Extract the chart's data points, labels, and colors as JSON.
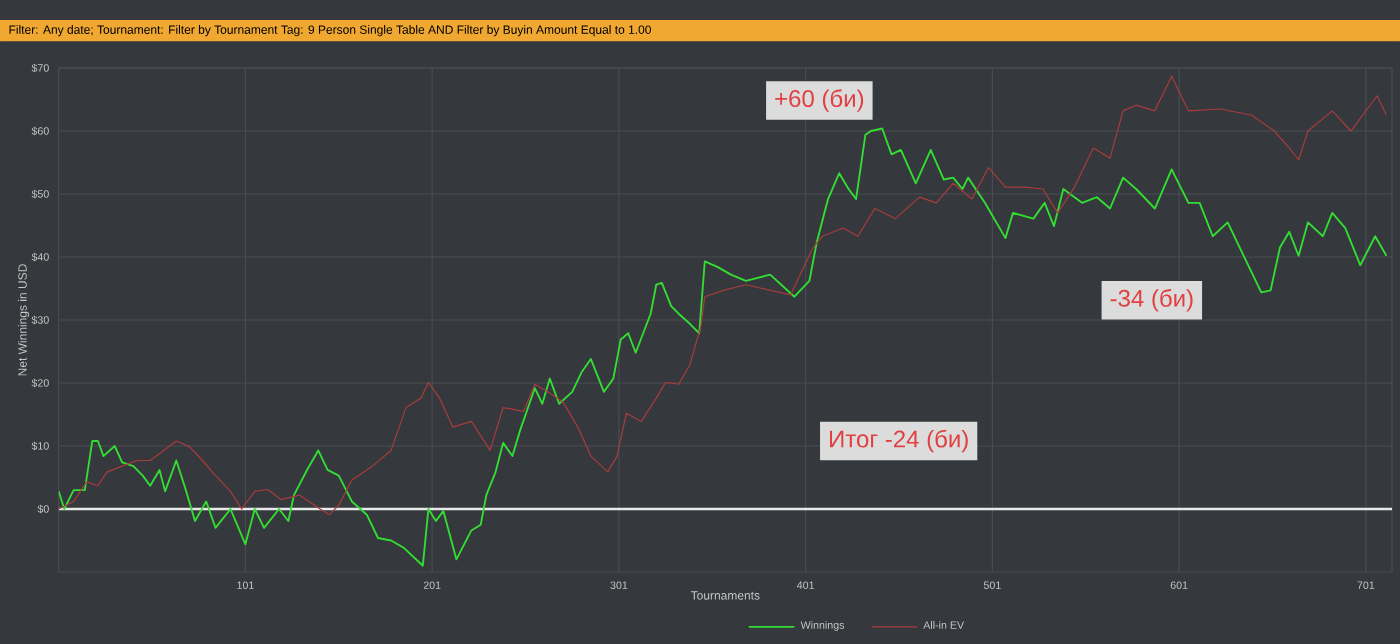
{
  "chart_data": {
    "type": "line",
    "subtitle": "Filter: Any date; Tournament: Filter by Tournament Tag: 9 Person Single Table AND Filter by Buyin Amount Equal to 1.00",
    "xlabel": "Tournaments",
    "ylabel": "Net Winnings in USD",
    "x": [
      1,
      4,
      9,
      15,
      19,
      22,
      25,
      31,
      35,
      41,
      46,
      50,
      55,
      58,
      64,
      69,
      74,
      80,
      85,
      93,
      101,
      106,
      111,
      119,
      124,
      127,
      134,
      140,
      145,
      151,
      158,
      166,
      172,
      179,
      186,
      196,
      199,
      203,
      207,
      214,
      222,
      227,
      230,
      235,
      239,
      244,
      248,
      256,
      260,
      264,
      269,
      276,
      281,
      286,
      293,
      298,
      302,
      306,
      310,
      318,
      321,
      324,
      329,
      333,
      339,
      344,
      347,
      354,
      361,
      369,
      382,
      395,
      403,
      407,
      413,
      419,
      424,
      428,
      433,
      436,
      442,
      447,
      452,
      460,
      468,
      475,
      480,
      485,
      488,
      497,
      508,
      512,
      523,
      529,
      534,
      539,
      549,
      557,
      564,
      571,
      578,
      588,
      597,
      606,
      612,
      619,
      627,
      637,
      645,
      650,
      655,
      660,
      665,
      670,
      678,
      683,
      690,
      698,
      706,
      712
    ],
    "series": [
      {
        "name": "Winnings",
        "color": "#33dd33",
        "values": [
          2.8,
          0,
          3,
          3,
          10.8,
          10.8,
          8.4,
          10,
          7.4,
          6.8,
          5.3,
          3.7,
          6.2,
          2.8,
          7.7,
          3.1,
          -1.9,
          1.2,
          -3,
          0,
          -5.6,
          0,
          -3,
          0,
          -1.9,
          2.2,
          6.2,
          9.3,
          6.2,
          5.3,
          1.2,
          -0.9,
          -4.6,
          -5,
          -6.2,
          -9,
          0,
          -1.9,
          -0.3,
          -8,
          -3.4,
          -2.5,
          2.2,
          5.9,
          10.5,
          8.4,
          12.4,
          19.2,
          16.7,
          20.7,
          16.7,
          18.6,
          21.7,
          23.8,
          18.6,
          20.7,
          26.9,
          27.9,
          24.8,
          31,
          35.6,
          35.9,
          32.2,
          31,
          29.4,
          27.9,
          39.3,
          38.4,
          37.2,
          36.2,
          37.2,
          33.7,
          36.2,
          42.4,
          49.2,
          53.3,
          50.8,
          49.2,
          59.4,
          60,
          60.4,
          56.3,
          57,
          51.7,
          57,
          52.3,
          52.6,
          50.8,
          52.6,
          48.6,
          43,
          47,
          46.1,
          48.6,
          44.9,
          50.8,
          48.6,
          49.5,
          47.7,
          52.6,
          50.8,
          47.7,
          53.9,
          48.6,
          48.6,
          43.3,
          45.5,
          39.3,
          34.4,
          34.7,
          41.5,
          44,
          40.2,
          45.5,
          43.3,
          47,
          44.6,
          38.7,
          43.3,
          40.2
        ]
      },
      {
        "name": "All-in EV",
        "color": "#a83c3c",
        "x": [
          1,
          9,
          16,
          22,
          27,
          35,
          43,
          50,
          56,
          64,
          71,
          78,
          85,
          93,
          99,
          106,
          113,
          120,
          130,
          141,
          146,
          151,
          158,
          169,
          179,
          187,
          195,
          199,
          205,
          212,
          222,
          232,
          239,
          250,
          256,
          263,
          271,
          279,
          286,
          295,
          300,
          305,
          313,
          321,
          326,
          333,
          339,
          345,
          347,
          357,
          369,
          393,
          405,
          410,
          421,
          429,
          438,
          449,
          462,
          471,
          480,
          490,
          499,
          508,
          518,
          528,
          536,
          545,
          555,
          564,
          571,
          578,
          588,
          597,
          606,
          623,
          640,
          652,
          660,
          665,
          670,
          683,
          693,
          707,
          712
        ],
        "values": [
          0,
          1.2,
          4.3,
          3.7,
          5.9,
          6.8,
          7.7,
          7.7,
          9,
          10.8,
          9.9,
          7.7,
          5.3,
          2.8,
          0,
          2.8,
          3.1,
          1.5,
          2.2,
          0,
          -0.9,
          0.6,
          4.6,
          6.8,
          9.3,
          16.1,
          17.6,
          20.1,
          17.6,
          13,
          13.9,
          9.3,
          16.1,
          15.5,
          19.8,
          18.6,
          17,
          13,
          8.4,
          5.9,
          8.4,
          15.2,
          13.9,
          17.6,
          20.1,
          19.8,
          22.9,
          29.1,
          33.7,
          34.7,
          35.6,
          34,
          41.5,
          43.3,
          44.6,
          43.3,
          47.7,
          46.1,
          49.5,
          48.6,
          51.7,
          49.2,
          54.2,
          51.1,
          51.1,
          50.8,
          47,
          51.1,
          57.3,
          55.7,
          63.2,
          64.1,
          63.2,
          68.7,
          63.2,
          63.5,
          62.5,
          60,
          57.3,
          55.4,
          60,
          63.2,
          60,
          65.6,
          62.5
        ]
      }
    ],
    "xlim": [
      1,
      715
    ],
    "ylim": [
      -10,
      70
    ],
    "xticks": [
      101,
      201,
      301,
      401,
      501,
      601,
      701
    ],
    "yticks": [
      {
        "value": 0,
        "label": "$0"
      },
      {
        "value": 10,
        "label": "$10"
      },
      {
        "value": 20,
        "label": "$20"
      },
      {
        "value": 30,
        "label": "$30"
      },
      {
        "value": 40,
        "label": "$40"
      },
      {
        "value": 50,
        "label": "$50"
      },
      {
        "value": 60,
        "label": "$60"
      },
      {
        "value": 70,
        "label": "$70"
      }
    ],
    "grid": true,
    "legend": "bottom",
    "ref_lines": [
      {
        "axis": "y",
        "value": 0,
        "color": "#e8e8e8"
      }
    ],
    "annotations": [
      {
        "text": "+60 (би)",
        "x": 440,
        "y": 60
      },
      {
        "text": "-34 (би)",
        "x": 645,
        "y": 34.4
      },
      "Итог -24 (би)"
    ]
  }
}
